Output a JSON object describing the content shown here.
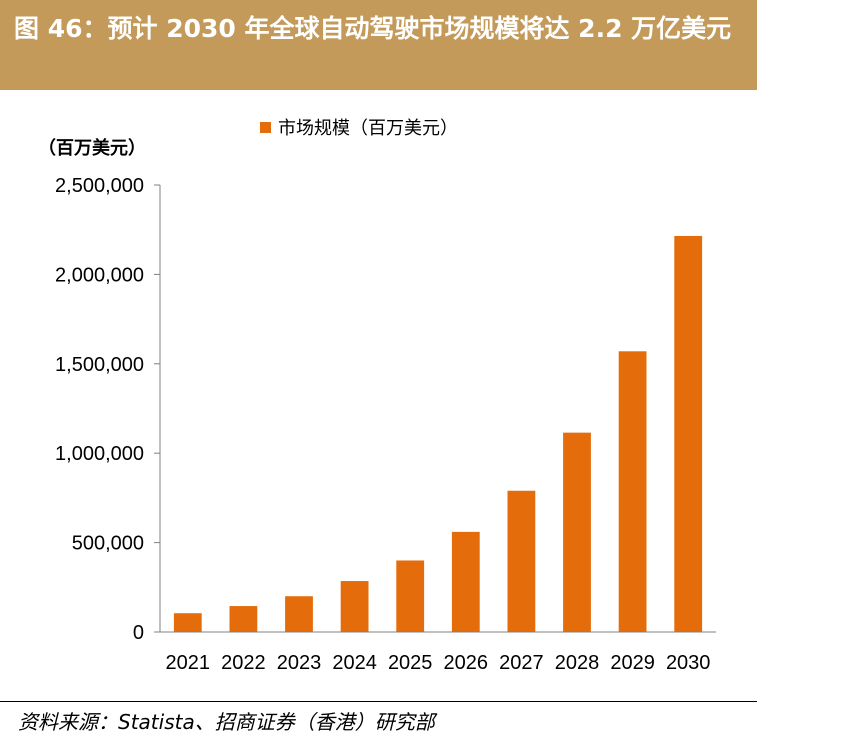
{
  "header": {
    "title": "图 46：预计 2030 年全球自动驾驶市场规模将达 2.2 万亿美元"
  },
  "footer": {
    "source": "资料来源：Statista、招商证券（香港）研究部"
  },
  "colors": {
    "title_bg": "#c39a5a",
    "bar": "#e46c0a"
  },
  "chart_data": {
    "type": "bar",
    "title": "",
    "xlabel": "",
    "ylabel": "",
    "unit_label": "（百万美元）",
    "legend": {
      "position": "top",
      "entries": [
        "市场规模（百万美元）"
      ]
    },
    "categories": [
      "2021",
      "2022",
      "2023",
      "2024",
      "2025",
      "2026",
      "2027",
      "2028",
      "2029",
      "2030"
    ],
    "series": [
      {
        "name": "市场规模（百万美元）",
        "values": [
          105000,
          145000,
          200000,
          285000,
          400000,
          560000,
          790000,
          1115000,
          1570000,
          2215000
        ]
      }
    ],
    "ylim": [
      0,
      2500000
    ],
    "yticks": [
      0,
      500000,
      1000000,
      1500000,
      2000000,
      2500000
    ],
    "ytick_labels": [
      "0",
      "500,000",
      "1,000,000",
      "1,500,000",
      "2,000,000",
      "2,500,000"
    ],
    "grid": false
  }
}
